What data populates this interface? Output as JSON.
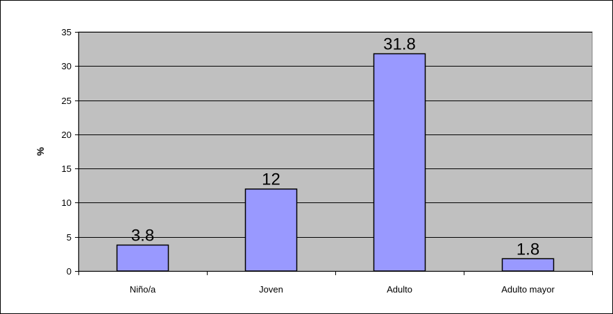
{
  "chart_data": {
    "type": "bar",
    "title": "",
    "xlabel": "",
    "ylabel": "%",
    "categories": [
      "Niño/a",
      "Joven",
      "Adulto",
      "Adulto mayor"
    ],
    "values": [
      3.8,
      12,
      31.8,
      1.8
    ],
    "data_labels": [
      "3.8",
      "12",
      "31.8",
      "1.8"
    ],
    "ylim": [
      0,
      35
    ],
    "yticks": [
      0,
      5,
      10,
      15,
      20,
      25,
      30,
      35
    ],
    "grid": true,
    "legend": "none",
    "colors": {
      "plot_background": "#c0c0c0",
      "bar_fill": "#9999ff",
      "bar_stroke": "#000000",
      "gridline": "#000000"
    }
  }
}
